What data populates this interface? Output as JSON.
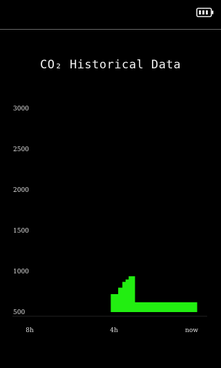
{
  "status": {
    "battery_icon": "battery-full-icon"
  },
  "chart_data": {
    "type": "area",
    "title": "CO2 Historical Data",
    "title_text": "CO₂ Historical Data",
    "y_ticks": [
      "3000",
      "2500",
      "2000",
      "1500",
      "1000",
      "500"
    ],
    "ylim": [
      500,
      3000
    ],
    "x_labels": [
      "8h",
      "4h",
      "now"
    ],
    "xlim": [
      -8,
      0
    ],
    "series": [
      {
        "color": "#22ee11",
        "x": [
          -4.15,
          -4.15,
          -3.8,
          -3.8,
          -3.6,
          -3.6,
          -3.45,
          -3.45,
          -3.3,
          -3.3,
          -3.15,
          -3.15,
          -3.0,
          -3.0,
          -2.85,
          -2.85,
          -0.05,
          -0.05
        ],
        "y": [
          500,
          720,
          720,
          800,
          800,
          870,
          870,
          900,
          900,
          940,
          940,
          940,
          940,
          620,
          620,
          620,
          620,
          500
        ]
      }
    ]
  }
}
